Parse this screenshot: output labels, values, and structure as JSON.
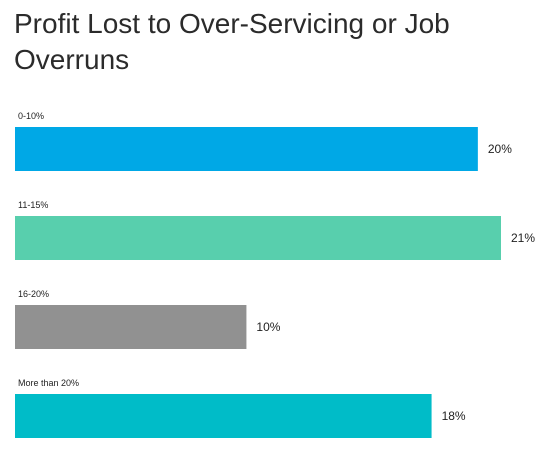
{
  "chart_data": {
    "type": "bar",
    "orientation": "horizontal",
    "title": "Profit Lost to Over-Servicing or Job Overruns",
    "categories": [
      "0-10%",
      "11-15%",
      "16-20%",
      "More than 20%"
    ],
    "values": [
      20,
      21,
      10,
      18
    ],
    "value_labels": [
      "20%",
      "21%",
      "10%",
      "18%"
    ],
    "colors": [
      "#00a8e6",
      "#58cfad",
      "#919191",
      "#00bcc8"
    ],
    "xlim": [
      0,
      21
    ],
    "grid": false,
    "legend": "none"
  }
}
